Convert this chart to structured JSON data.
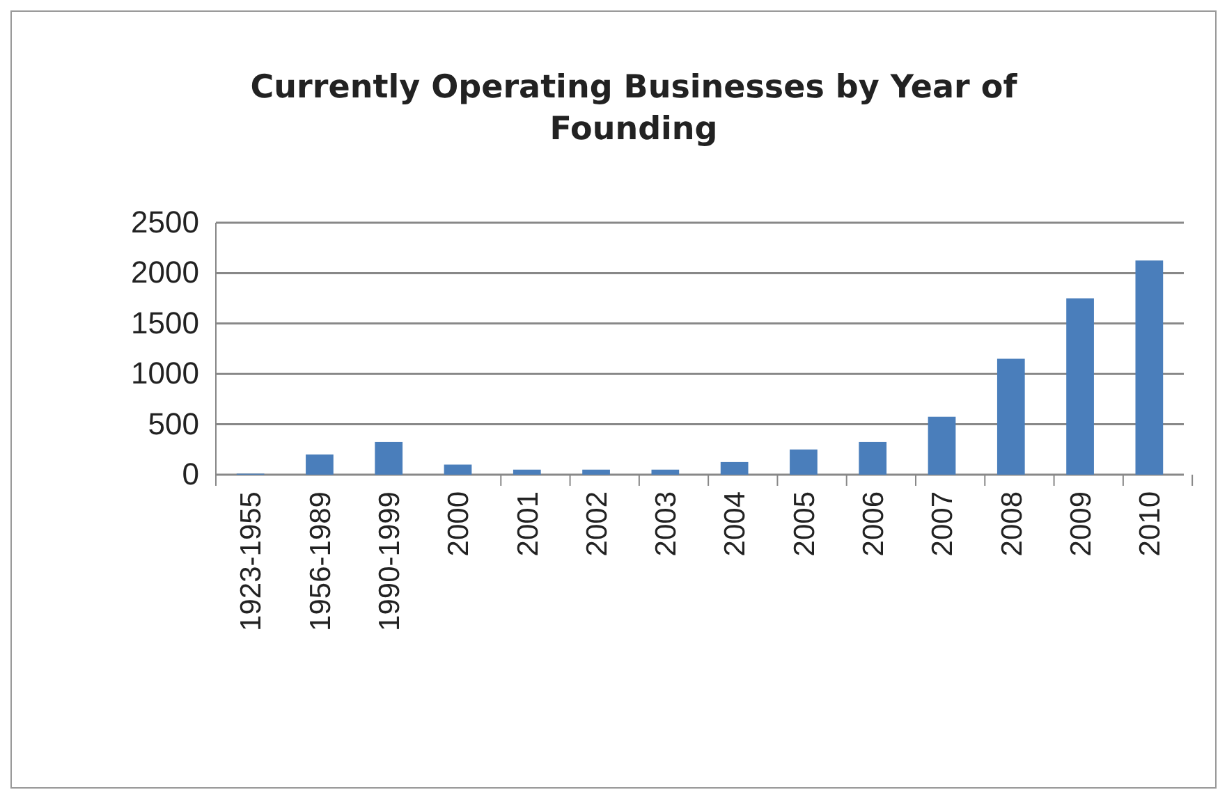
{
  "chart_data": {
    "type": "bar",
    "title": "Currently Operating Businesses by Year of Founding",
    "categories": [
      "1923-1955",
      "1956-1989",
      "1990-1999",
      "2000",
      "2001",
      "2002",
      "2003",
      "2004",
      "2005",
      "2006",
      "2007",
      "2008",
      "2009",
      "2010"
    ],
    "values": [
      10,
      200,
      325,
      100,
      50,
      50,
      50,
      125,
      250,
      325,
      575,
      1150,
      1750,
      2125
    ],
    "color": "#4a7ebb",
    "ylim": [
      0,
      2500
    ],
    "yticks": [
      0,
      500,
      1000,
      1500,
      2000,
      2500
    ],
    "grid": "y"
  }
}
